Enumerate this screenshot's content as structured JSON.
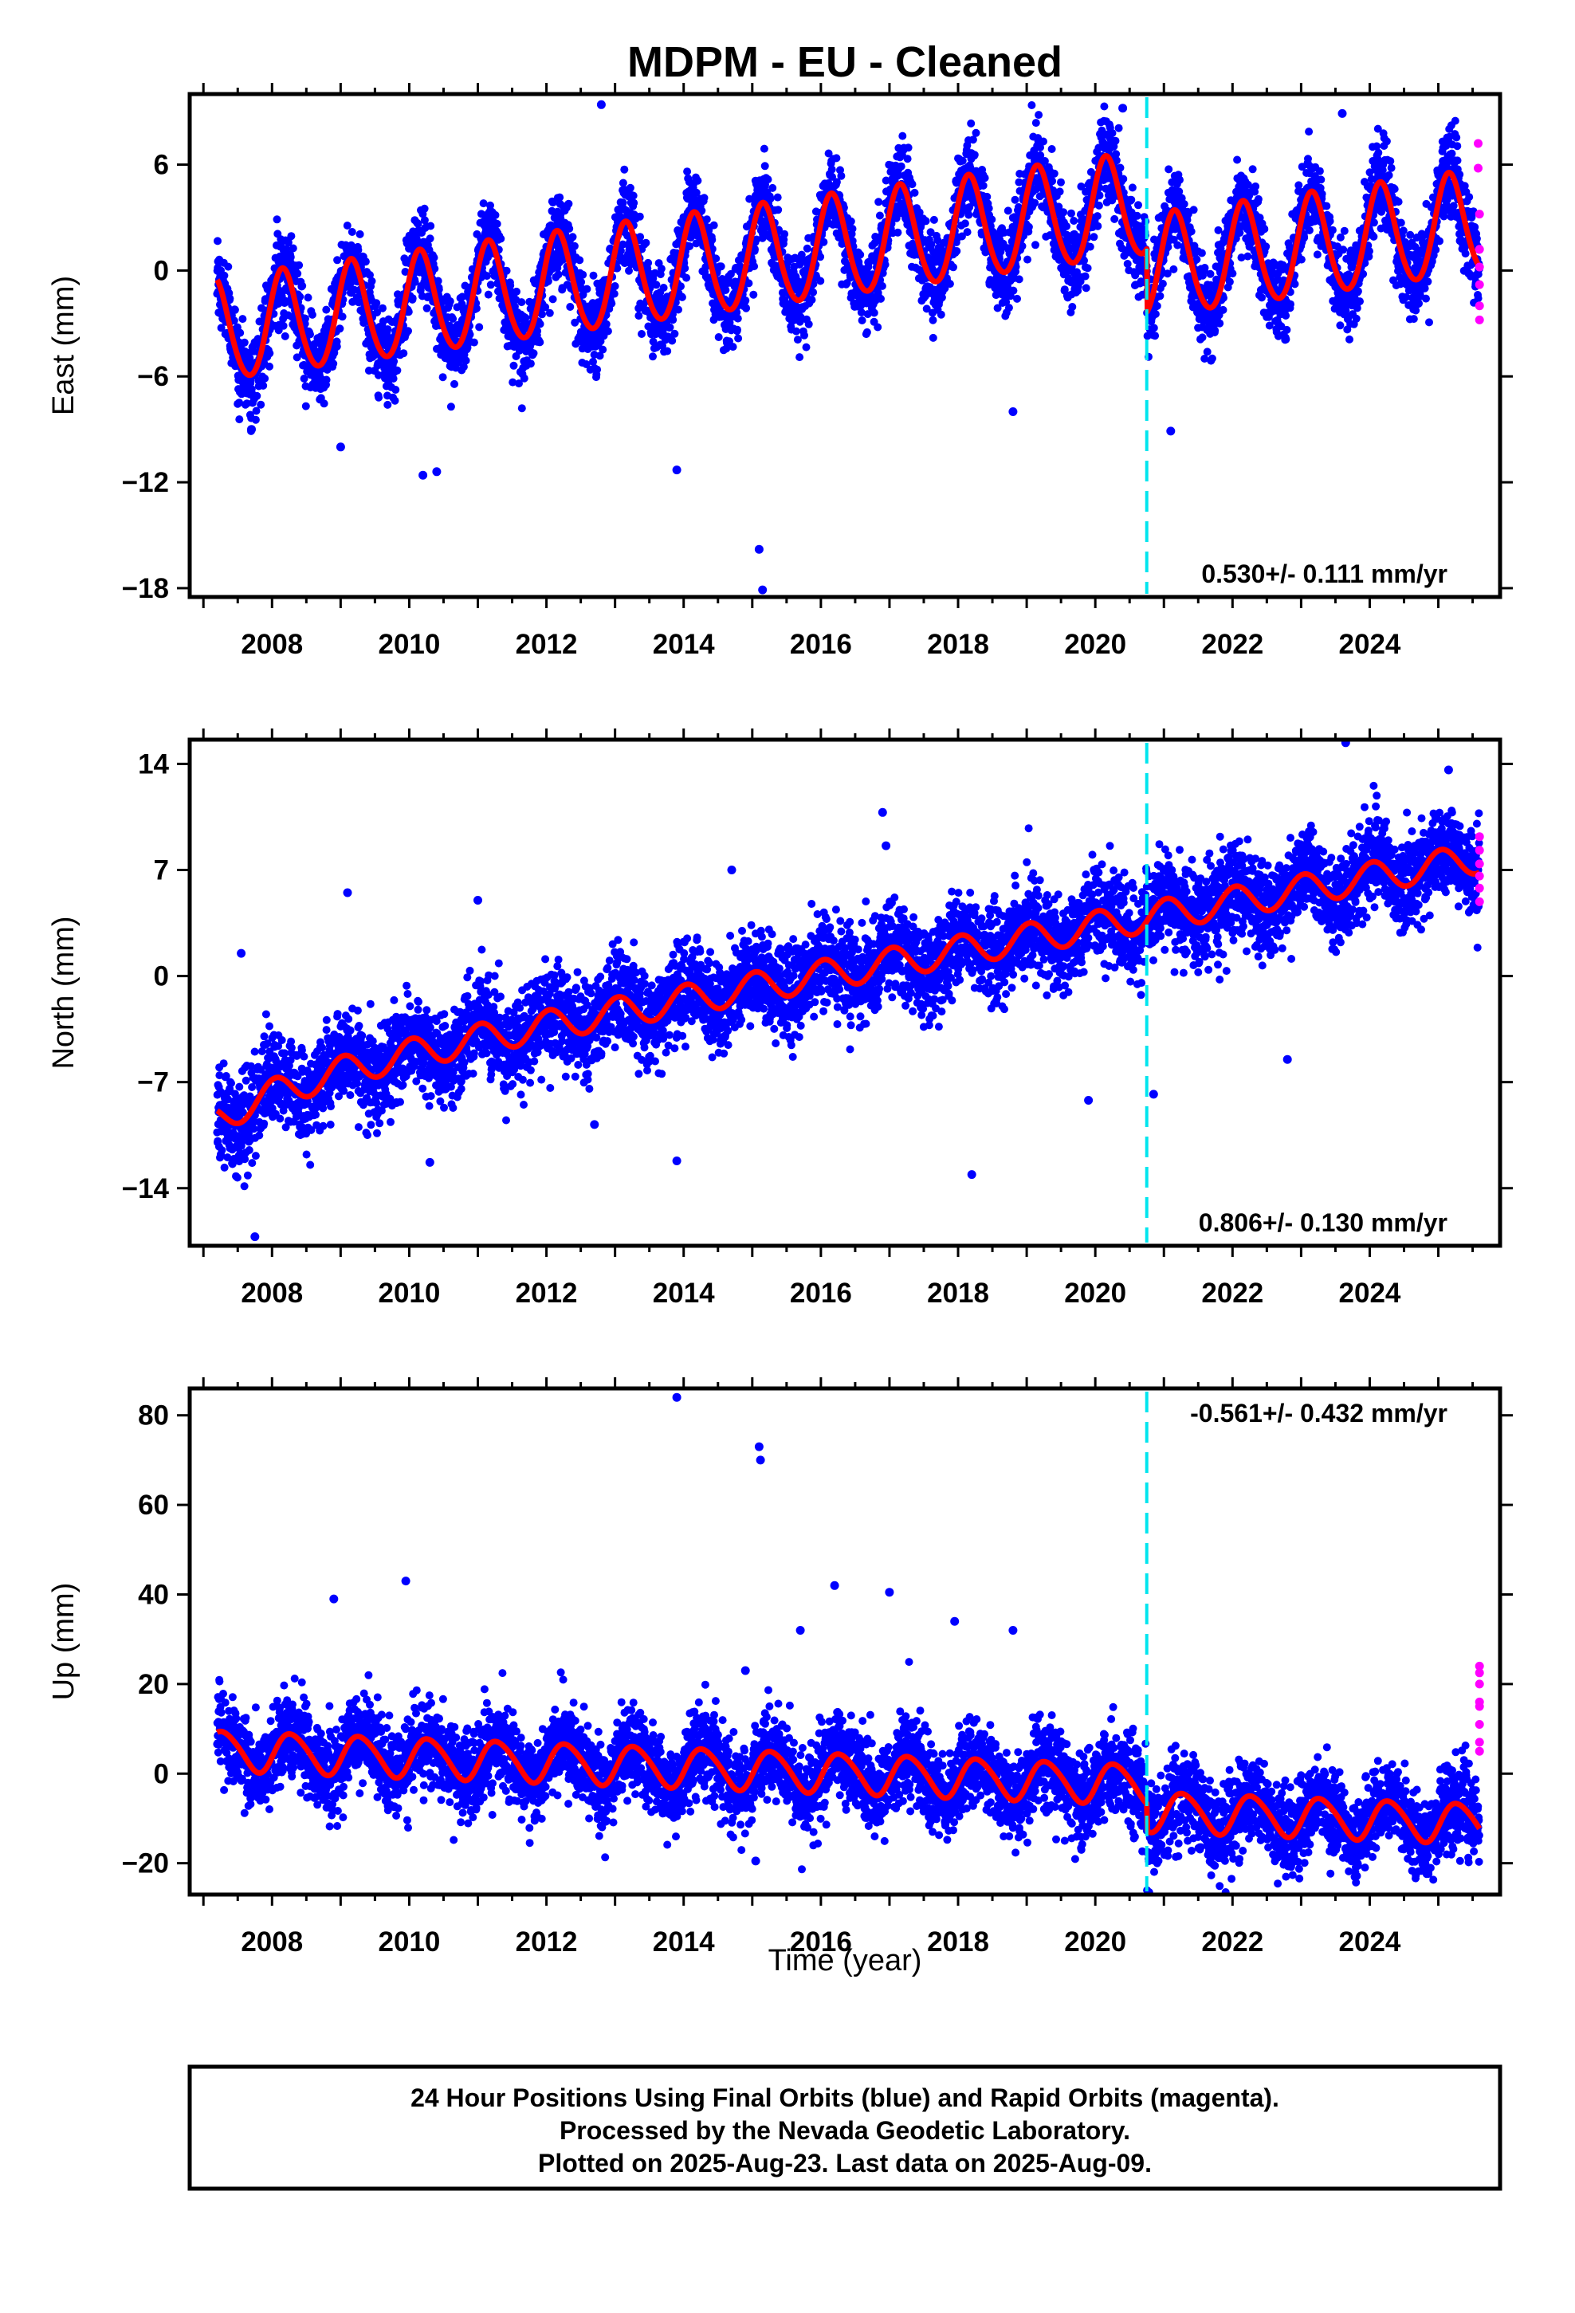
{
  "title": "MDPM  - EU - Cleaned",
  "xlabel": "Time (year)",
  "colors": {
    "final_points": "#0000ff",
    "rapid_points": "#ff00ff",
    "model": "#ff0000",
    "break_line": "#00e5ee",
    "frame": "#000000"
  },
  "chart_data": [
    {
      "type": "scatter",
      "component": "East",
      "ylabel": "East (mm)",
      "xlim": [
        2006.8,
        2025.9
      ],
      "ylim": [
        -18.5,
        10
      ],
      "yticks": [
        6,
        0,
        -6,
        -12,
        -18
      ],
      "ytick_labels": [
        "6",
        "0",
        "−6",
        "−12",
        "−18"
      ],
      "xticks": [
        2008,
        2010,
        2012,
        2014,
        2016,
        2018,
        2020,
        2022,
        2024
      ],
      "break_epoch": 2020.75,
      "rate_label": "0.530+/- 0.111 mm/yr",
      "rate_position": "bottom-right",
      "model": {
        "rate": 0.53,
        "offset_at_2007": -3.6,
        "annual_amplitude": 2.9,
        "annual_phase": 0.55,
        "semiannual_amplitude": 0.25,
        "break_step": -3.6
      },
      "data_span": [
        2007.2,
        2025.6
      ],
      "scatter_sigma": 1.2,
      "outliers": [
        [
          2012.8,
          9.4
        ],
        [
          2020.4,
          9.2
        ],
        [
          2023.6,
          8.9
        ],
        [
          2015.1,
          -15.8
        ],
        [
          2015.15,
          -18.1
        ],
        [
          2013.9,
          -11.3
        ],
        [
          2010.2,
          -11.6
        ],
        [
          2010.4,
          -11.4
        ],
        [
          2009.0,
          -10.0
        ],
        [
          2021.1,
          -9.1
        ],
        [
          2018.8,
          -8.0
        ],
        [
          2007.7,
          -9.0
        ]
      ],
      "rapid_points": [
        [
          2025.58,
          7.2
        ],
        [
          2025.58,
          5.8
        ],
        [
          2025.6,
          3.2
        ],
        [
          2025.6,
          1.2
        ],
        [
          2025.6,
          0.2
        ],
        [
          2025.6,
          -0.8
        ],
        [
          2025.6,
          -2.0
        ],
        [
          2025.6,
          -2.8
        ]
      ]
    },
    {
      "type": "scatter",
      "component": "North",
      "ylabel": "North (mm)",
      "xlim": [
        2006.8,
        2025.9
      ],
      "ylim": [
        -17.8,
        15.6
      ],
      "yticks": [
        14,
        7,
        0,
        -7,
        -14
      ],
      "ytick_labels": [
        "14",
        "7",
        "0",
        "−7",
        "−14"
      ],
      "xticks": [
        2008,
        2010,
        2012,
        2014,
        2016,
        2018,
        2020,
        2022,
        2024
      ],
      "break_epoch": 2020.75,
      "rate_label": "0.806+/- 0.130 mm/yr",
      "rate_position": "bottom-right",
      "model": {
        "rate": 0.806,
        "offset_at_2007": -7.2,
        "annual_amplitude": 1.0,
        "annual_phase": 1.3,
        "semiannual_amplitude": 0.0,
        "break_step": 0.0,
        "decay_amplitude": -2.4,
        "decay_time": 1.5
      },
      "data_span": [
        2007.2,
        2025.6
      ],
      "scatter_sigma": 1.5,
      "outliers": [
        [
          2007.75,
          -17.2
        ],
        [
          2007.55,
          1.5
        ],
        [
          2009.1,
          5.5
        ],
        [
          2011.0,
          5.0
        ],
        [
          2014.7,
          7.0
        ],
        [
          2016.9,
          10.8
        ],
        [
          2016.95,
          8.6
        ],
        [
          2023.65,
          15.4
        ],
        [
          2025.15,
          13.6
        ],
        [
          2018.2,
          -13.1
        ],
        [
          2013.9,
          -12.2
        ],
        [
          2010.3,
          -12.3
        ],
        [
          2012.7,
          -9.8
        ],
        [
          2020.85,
          -7.8
        ],
        [
          2019.9,
          -8.2
        ],
        [
          2022.8,
          -5.5
        ]
      ],
      "rapid_points": [
        [
          2025.6,
          9.2
        ],
        [
          2025.6,
          8.3
        ],
        [
          2025.6,
          7.4
        ],
        [
          2025.6,
          6.6
        ],
        [
          2025.6,
          5.8
        ],
        [
          2025.6,
          4.9
        ]
      ]
    },
    {
      "type": "scatter",
      "component": "Up",
      "ylabel": "Up (mm)",
      "xlim": [
        2006.8,
        2025.9
      ],
      "ylim": [
        -27,
        86
      ],
      "yticks": [
        80,
        60,
        40,
        20,
        0,
        -20
      ],
      "ytick_labels": [
        "80",
        "60",
        "40",
        "20",
        "0",
        "−20"
      ],
      "xticks": [
        2008,
        2010,
        2012,
        2014,
        2016,
        2018,
        2020,
        2022,
        2024
      ],
      "break_epoch": 2020.75,
      "rate_label": "-0.561+/- 0.432 mm/yr",
      "rate_position": "top-right",
      "model": {
        "rate": -0.561,
        "offset_at_2007": 5.3,
        "annual_amplitude": 4.4,
        "annual_phase": -0.25,
        "semiannual_amplitude": 0.5,
        "break_step": -6.0
      },
      "data_span": [
        2007.2,
        2025.6
      ],
      "scatter_sigma": 4.8,
      "outliers": [
        [
          2013.9,
          84
        ],
        [
          2015.1,
          73
        ],
        [
          2015.12,
          70
        ],
        [
          2008.9,
          39
        ],
        [
          2009.95,
          43
        ],
        [
          2016.2,
          42
        ],
        [
          2017.0,
          40.5
        ],
        [
          2017.95,
          34
        ],
        [
          2018.8,
          32
        ],
        [
          2015.7,
          32
        ],
        [
          2014.9,
          23
        ],
        [
          2015.05,
          -19.5
        ]
      ],
      "rapid_points": [
        [
          2025.6,
          24
        ],
        [
          2025.6,
          22.5
        ],
        [
          2025.6,
          20
        ],
        [
          2025.6,
          16
        ],
        [
          2025.6,
          15
        ],
        [
          2025.6,
          11
        ],
        [
          2025.6,
          7
        ],
        [
          2025.6,
          5
        ]
      ]
    }
  ],
  "footer": {
    "line1": "24 Hour Positions Using Final Orbits (blue) and Rapid Orbits (magenta).",
    "line2": "Processed by the Nevada Geodetic Laboratory.",
    "line3": "Plotted on 2025-Aug-23. Last data on 2025-Aug-09."
  }
}
